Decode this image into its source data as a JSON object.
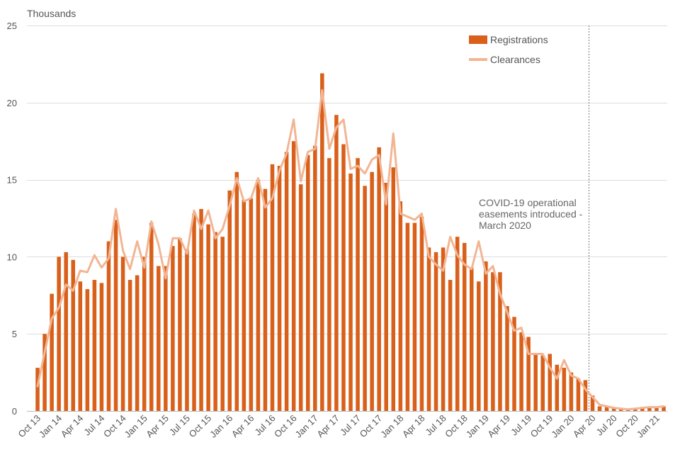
{
  "chart_data": {
    "type": "bar+line",
    "ylabel": "Thousands",
    "ylim": [
      0,
      25
    ],
    "yticks": [
      0,
      5,
      10,
      15,
      20,
      25
    ],
    "grid": true,
    "legend_position": "top-right",
    "x_tick_labels": [
      "Oct 13",
      "Jan 14",
      "Apr 14",
      "Jul 14",
      "Oct 14",
      "Jan 15",
      "Apr 15",
      "Jul 15",
      "Oct 15",
      "Jan 16",
      "Apr 16",
      "Jul 16",
      "Oct 16",
      "Jan 17",
      "Apr 17",
      "Jul 17",
      "Oct 17",
      "Jan 18",
      "Apr 18",
      "Jul 18",
      "Oct 18",
      "Jan 19",
      "Apr 19",
      "Jul 19",
      "Oct 19",
      "Jan 20",
      "Apr 20",
      "Jul 20",
      "Oct 20",
      "Jan 21"
    ],
    "x_tick_every": 3,
    "series": [
      {
        "name": "Registrations",
        "kind": "bar",
        "color": "#D9601A",
        "values": [
          2.8,
          5.0,
          7.6,
          10.0,
          10.3,
          9.8,
          8.4,
          7.9,
          8.5,
          8.3,
          11.0,
          12.4,
          10.0,
          8.5,
          8.8,
          10.0,
          12.2,
          9.4,
          9.4,
          10.7,
          11.2,
          10.5,
          12.8,
          13.1,
          12.1,
          11.6,
          11.3,
          14.3,
          15.5,
          13.7,
          13.8,
          15.0,
          14.4,
          16.0,
          15.9,
          16.8,
          17.5,
          14.7,
          16.6,
          17.2,
          21.9,
          16.4,
          19.2,
          17.3,
          15.4,
          16.4,
          14.6,
          15.5,
          17.1,
          14.8,
          15.8,
          13.6,
          12.2,
          12.2,
          12.6,
          10.6,
          10.3,
          10.6,
          8.5,
          11.3,
          10.9,
          9.3,
          8.4,
          9.7,
          9.0,
          9.0,
          6.8,
          6.1,
          5.1,
          4.8,
          3.7,
          3.6,
          3.7,
          3.0,
          2.8,
          2.5,
          2.1,
          2.0,
          1.0,
          0.3,
          0.3,
          0.2,
          0.15,
          0.1,
          0.15,
          0.2,
          0.2,
          0.25,
          0.3
        ]
      },
      {
        "name": "Clearances",
        "kind": "line",
        "color": "#F2B593",
        "values": [
          1.6,
          3.8,
          6.0,
          6.7,
          8.2,
          7.8,
          9.1,
          9.0,
          10.1,
          9.3,
          9.9,
          13.1,
          10.4,
          9.2,
          11.0,
          9.3,
          12.3,
          10.8,
          8.6,
          11.2,
          11.2,
          10.2,
          13.0,
          11.8,
          13.0,
          11.2,
          11.8,
          13.3,
          15.1,
          13.6,
          13.8,
          15.1,
          13.2,
          13.8,
          15.6,
          16.7,
          18.9,
          14.9,
          16.8,
          17.0,
          20.8,
          17.0,
          18.4,
          18.9,
          15.7,
          15.9,
          15.4,
          16.3,
          16.6,
          13.4,
          18.0,
          12.8,
          12.6,
          12.4,
          12.8,
          10.0,
          9.5,
          9.1,
          11.3,
          10.1,
          9.5,
          9.2,
          11.0,
          8.9,
          9.4,
          7.6,
          6.4,
          5.2,
          5.4,
          3.7,
          3.7,
          3.7,
          2.8,
          2.1,
          3.3,
          2.3,
          2.1,
          1.4,
          0.9,
          0.4,
          0.3,
          0.2,
          0.15,
          0.1,
          0.15,
          0.2,
          0.25,
          0.25,
          0.3
        ]
      }
    ],
    "annotation": {
      "lines": [
        "COVID-19 operational",
        "easements introduced -",
        "March 2020"
      ],
      "marker_index": 77
    }
  }
}
